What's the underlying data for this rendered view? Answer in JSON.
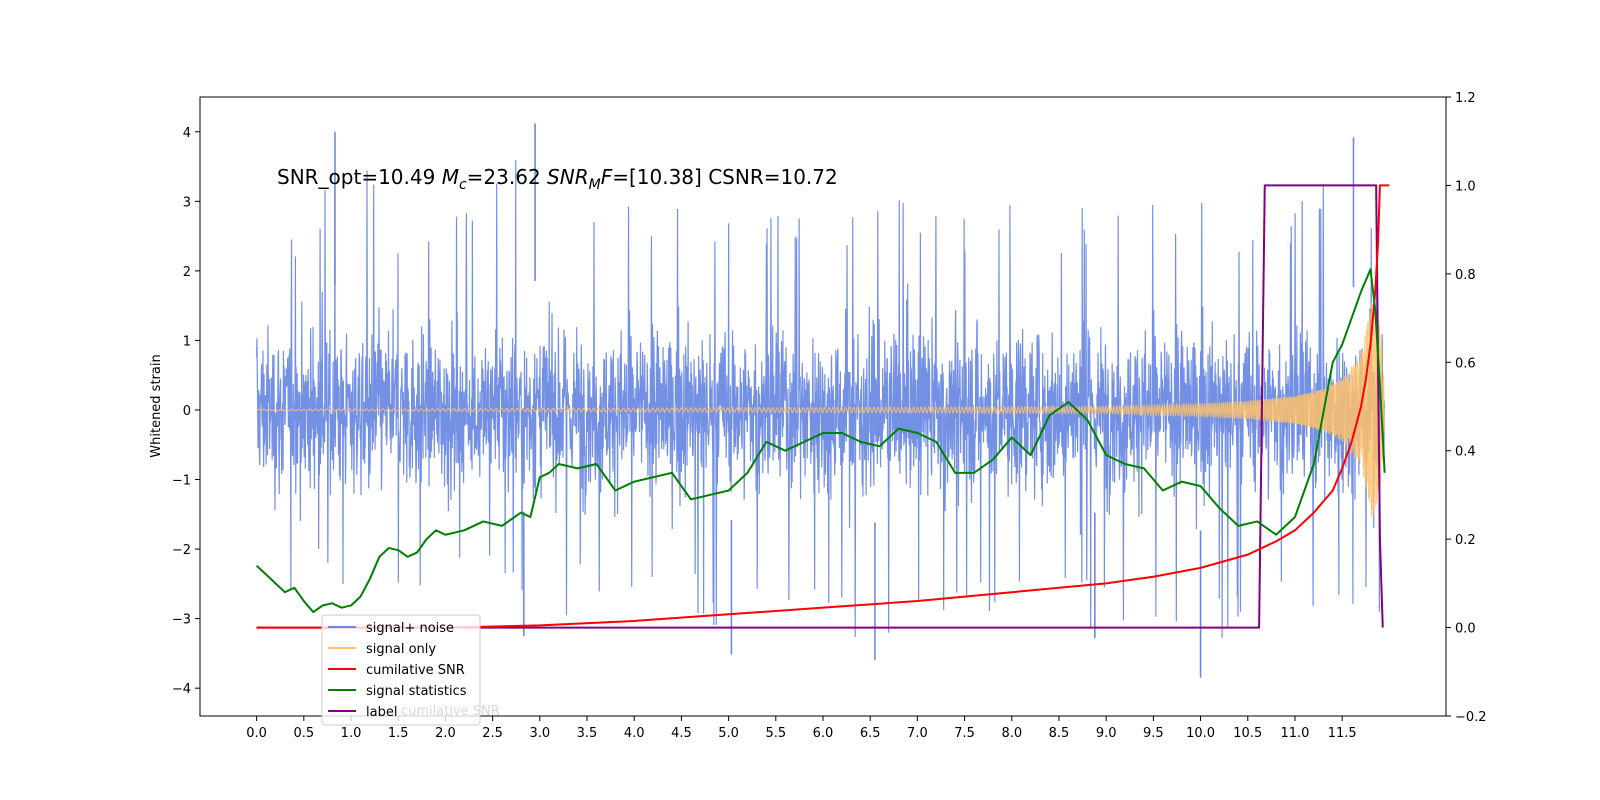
{
  "chart_data": {
    "type": "line",
    "annotation": {
      "part1": "SNR_opt=10.49 ",
      "mc_symbol": "M",
      "mc_sub": "c",
      "mc_value": "=23.62  ",
      "mf_symbol": "SNR",
      "mf_sub": "M",
      "mf_F": "F",
      "mf_value": "=[10.38] CSNR=10.72"
    },
    "ylabel": "Whitened strain",
    "xlim": [
      -0.6,
      12.6
    ],
    "ylim_left": [
      -4.4,
      4.5
    ],
    "ylim_right": [
      -0.2,
      1.2
    ],
    "x_ticks": [
      "0.0",
      "0.5",
      "1.0",
      "1.5",
      "2.0",
      "2.5",
      "3.0",
      "3.5",
      "4.0",
      "4.5",
      "5.0",
      "5.5",
      "6.0",
      "6.5",
      "7.0",
      "7.5",
      "8.0",
      "8.5",
      "9.0",
      "9.5",
      "10.0",
      "10.5",
      "11.0",
      "11.5"
    ],
    "y_ticks_left": [
      "4",
      "3",
      "2",
      "1",
      "0",
      "−1",
      "−2",
      "−3",
      "−4"
    ],
    "y_ticks_right": [
      "1.2",
      "1.0",
      "0.8",
      "0.6",
      "0.4",
      "0.2",
      "0.0",
      "−0.2"
    ],
    "legend": {
      "position": "lower left",
      "entries": [
        {
          "label": "signal+ noise",
          "color": "#6c8ae4"
        },
        {
          "label": "signal only",
          "color": "#ffc26b"
        },
        {
          "label": "cumilative SNR",
          "color": "#ff0000"
        },
        {
          "label": "signal statistics",
          "color": "#008000"
        },
        {
          "label": "label",
          "color": "#800080"
        }
      ],
      "hidden_text": "cumilative SNR"
    },
    "series": [
      {
        "name": "signal+ noise",
        "axis": "left",
        "color": "#6c8ae4",
        "envelope_x": [
          0,
          0.5,
          1,
          1.5,
          2,
          2.5,
          3,
          3.5,
          4,
          4.5,
          5,
          5.5,
          6,
          6.5,
          7,
          7.5,
          8,
          8.5,
          9,
          9.5,
          10,
          10.5,
          11,
          11.5,
          11.9
        ],
        "envelope_upper": [
          2.6,
          2.9,
          4.0,
          2.9,
          3.0,
          3.2,
          4.1,
          2.8,
          3.0,
          2.9,
          3.2,
          2.9,
          3.1,
          3.0,
          3.2,
          2.9,
          3.3,
          3.0,
          2.9,
          3.0,
          3.0,
          2.9,
          3.0,
          3.9,
          3.2
        ],
        "envelope_lower": [
          -2.6,
          -2.6,
          -2.7,
          -2.9,
          -2.6,
          -2.8,
          -3.2,
          -2.8,
          -2.6,
          -2.9,
          -3.5,
          -3.0,
          -2.9,
          -3.6,
          -3.0,
          -2.9,
          -2.9,
          -2.9,
          -3.3,
          -3.0,
          -3.9,
          -3.0,
          -3.1,
          -3.0,
          -3.0
        ],
        "spikes": [
          {
            "x": 0.83,
            "y": 4.0
          },
          {
            "x": 2.95,
            "y": 4.12
          },
          {
            "x": 11.62,
            "y": 3.92
          },
          {
            "x": 10.0,
            "y": -3.85
          },
          {
            "x": 5.03,
            "y": -3.52
          },
          {
            "x": 6.55,
            "y": -3.6
          },
          {
            "x": 8.88,
            "y": -3.28
          },
          {
            "x": 2.83,
            "y": -3.25
          }
        ]
      },
      {
        "name": "signal only",
        "axis": "left",
        "color": "#ffc26b",
        "envelope_x": [
          0,
          9.0,
          10.0,
          10.5,
          11.0,
          11.3,
          11.5,
          11.7,
          11.82,
          11.9,
          11.95
        ],
        "envelope_amp": [
          0.01,
          0.05,
          0.09,
          0.13,
          0.2,
          0.3,
          0.45,
          0.8,
          1.6,
          1.2,
          0.3
        ]
      },
      {
        "name": "cumilative SNR",
        "axis": "right",
        "color": "#ff0000",
        "x": [
          0,
          2,
          3,
          4,
          5,
          6,
          7,
          8,
          9,
          9.5,
          10,
          10.5,
          10.8,
          11.0,
          11.2,
          11.4,
          11.5,
          11.6,
          11.7,
          11.75,
          11.8,
          11.85,
          11.88,
          11.9,
          11.92,
          11.95,
          12.0
        ],
        "y": [
          0,
          0,
          0.005,
          0.015,
          0.03,
          0.045,
          0.06,
          0.08,
          0.1,
          0.115,
          0.135,
          0.165,
          0.195,
          0.22,
          0.26,
          0.31,
          0.36,
          0.42,
          0.5,
          0.56,
          0.64,
          0.76,
          0.87,
          1.0,
          1.0,
          1.0,
          1.0
        ]
      },
      {
        "name": "signal statistics",
        "axis": "right",
        "color": "#008000",
        "x": [
          0,
          0.1,
          0.2,
          0.3,
          0.4,
          0.5,
          0.6,
          0.7,
          0.8,
          0.9,
          1.0,
          1.1,
          1.2,
          1.3,
          1.4,
          1.5,
          1.6,
          1.7,
          1.8,
          1.9,
          2.0,
          2.2,
          2.4,
          2.6,
          2.8,
          2.9,
          3.0,
          3.1,
          3.2,
          3.4,
          3.6,
          3.8,
          4.0,
          4.2,
          4.4,
          4.6,
          4.8,
          5.0,
          5.2,
          5.4,
          5.6,
          5.8,
          6.0,
          6.2,
          6.4,
          6.6,
          6.8,
          7.0,
          7.2,
          7.4,
          7.6,
          7.8,
          8.0,
          8.2,
          8.4,
          8.6,
          8.8,
          9.0,
          9.2,
          9.4,
          9.6,
          9.8,
          10.0,
          10.2,
          10.4,
          10.6,
          10.8,
          11.0,
          11.2,
          11.4,
          11.5,
          11.6,
          11.7,
          11.8,
          11.85,
          11.9,
          11.95
        ],
        "y": [
          0.14,
          0.12,
          0.1,
          0.08,
          0.09,
          0.06,
          0.035,
          0.05,
          0.055,
          0.045,
          0.05,
          0.07,
          0.11,
          0.16,
          0.18,
          0.175,
          0.16,
          0.17,
          0.2,
          0.22,
          0.21,
          0.22,
          0.24,
          0.23,
          0.26,
          0.25,
          0.34,
          0.35,
          0.37,
          0.36,
          0.37,
          0.31,
          0.33,
          0.34,
          0.35,
          0.29,
          0.3,
          0.31,
          0.35,
          0.42,
          0.4,
          0.42,
          0.44,
          0.44,
          0.42,
          0.41,
          0.45,
          0.44,
          0.42,
          0.35,
          0.35,
          0.38,
          0.43,
          0.39,
          0.48,
          0.51,
          0.47,
          0.39,
          0.37,
          0.36,
          0.31,
          0.33,
          0.32,
          0.27,
          0.23,
          0.24,
          0.21,
          0.25,
          0.37,
          0.6,
          0.64,
          0.7,
          0.76,
          0.81,
          0.72,
          0.55,
          0.35
        ]
      },
      {
        "name": "label",
        "axis": "right",
        "color": "#800080",
        "x": [
          0,
          10.62,
          10.68,
          11.8,
          11.86,
          11.9,
          11.93
        ],
        "y": [
          0,
          0,
          1,
          1,
          1,
          0.2,
          0
        ]
      }
    ],
    "grid": false
  }
}
